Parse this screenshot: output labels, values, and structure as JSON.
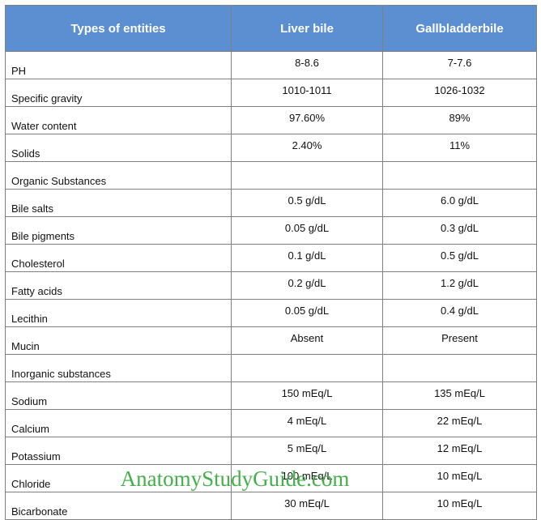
{
  "table": {
    "header": [
      "Types of entities",
      "Liver bile",
      "Gallbladderbile"
    ],
    "rows": [
      [
        "PH",
        "8-8.6",
        "7-7.6"
      ],
      [
        "Specific gravity",
        "1010-1011",
        "1026-1032"
      ],
      [
        "Water content",
        "97.60%",
        "89%"
      ],
      [
        "Solids",
        "2.40%",
        "11%"
      ],
      [
        "Organic Substances"
      ],
      [
        "Bile salts",
        "0.5 g/dL",
        "6.0 g/dL"
      ],
      [
        "Bile pigments",
        "0.05 g/dL",
        "0.3 g/dL"
      ],
      [
        "Cholesterol",
        "0.1 g/dL",
        "0.5 g/dL"
      ],
      [
        "Fatty acids",
        "0.2 g/dL",
        "1.2 g/dL"
      ],
      [
        "Lecithin",
        "0.05 g/dL",
        "0.4 g/dL"
      ],
      [
        "Mucin",
        "Absent",
        "Present"
      ],
      [
        "Inorganic substances"
      ],
      [
        "Sodium",
        "150 mEq/L",
        "135 mEq/L"
      ],
      [
        "Calcium",
        "4 mEq/L",
        "22 mEq/L"
      ],
      [
        "Potassium",
        "5 mEq/L",
        "12 mEq/L"
      ],
      [
        "Chloride",
        "100 mEq/L",
        "10 mEq/L"
      ],
      [
        "Bicarbonate",
        "30 mEq/L",
        "10 mEq/L"
      ]
    ]
  },
  "watermark": "AnatomyStudyGuide.com"
}
